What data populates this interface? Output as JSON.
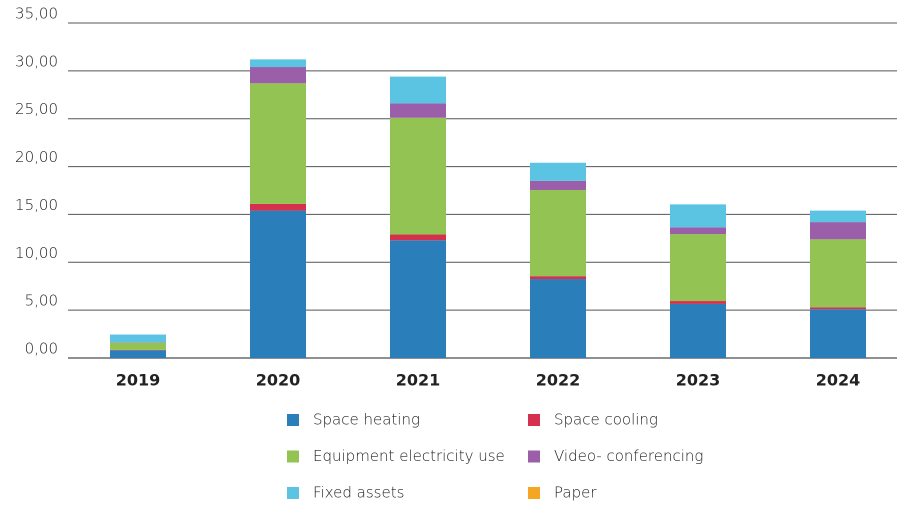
{
  "chart_data": {
    "type": "stacked_bar",
    "categories": [
      "2019",
      "2020",
      "2021",
      "2022",
      "2023",
      "2024"
    ],
    "series": [
      {
        "name": "Space heating",
        "color": "#2a7fba",
        "values": [
          0.8,
          15.4,
          12.3,
          8.25,
          5.65,
          5.1
        ]
      },
      {
        "name": "Space cooling",
        "color": "#d6304f",
        "values": [
          0.05,
          0.7,
          0.6,
          0.3,
          0.3,
          0.2
        ]
      },
      {
        "name": "Equipment electricity use",
        "color": "#92c353",
        "values": [
          0.75,
          12.6,
          12.2,
          9.0,
          7.0,
          7.1
        ]
      },
      {
        "name": "Video- conferencing",
        "color": "#9a5fa8",
        "values": [
          0.05,
          1.7,
          1.5,
          0.95,
          0.7,
          1.8
        ]
      },
      {
        "name": "Fixed assets",
        "color": "#5cc4e3",
        "values": [
          0.8,
          0.8,
          2.8,
          1.9,
          2.4,
          1.2
        ]
      },
      {
        "name": "Paper",
        "color": "#f5a623",
        "values": [
          0,
          0,
          0,
          0,
          0,
          0
        ]
      }
    ],
    "ylim": [
      0,
      35
    ],
    "yticks": [
      {
        "value": 0,
        "label": "0,00"
      },
      {
        "value": 5,
        "label": "5,00"
      },
      {
        "value": 10,
        "label": "10,00"
      },
      {
        "value": 15,
        "label": "15,00"
      },
      {
        "value": 20,
        "label": "20,00"
      },
      {
        "value": 25,
        "label": "25,00"
      },
      {
        "value": 30,
        "label": "30,00"
      },
      {
        "value": 35,
        "label": "35,00"
      }
    ],
    "grid": true
  }
}
